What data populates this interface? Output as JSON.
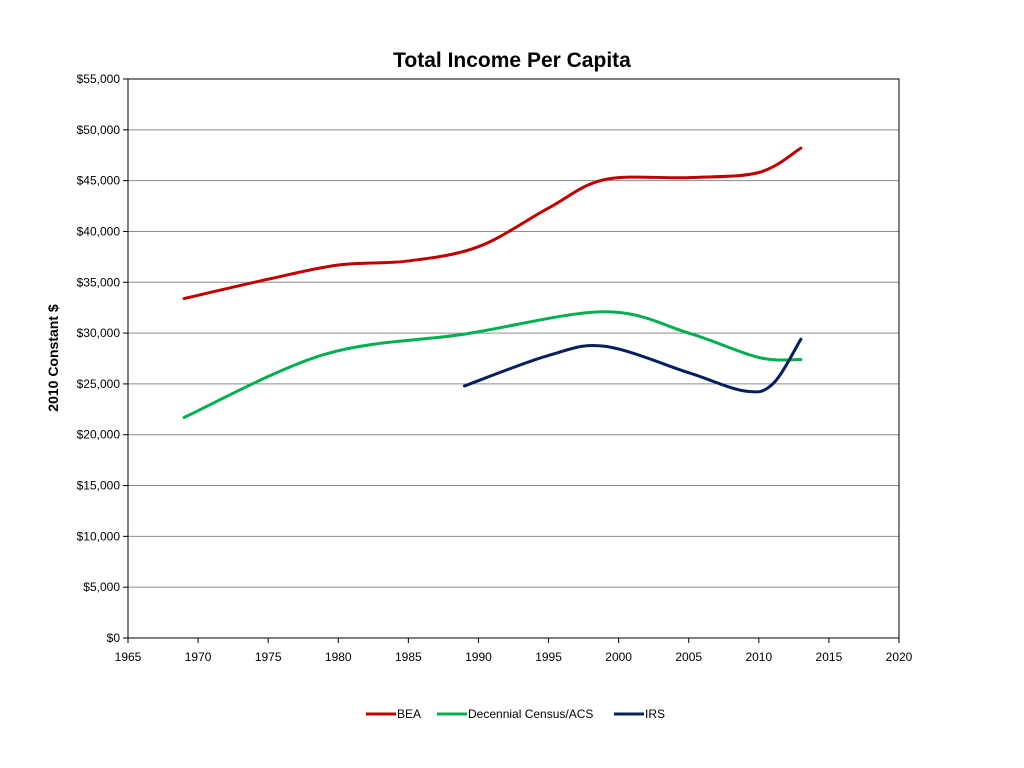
{
  "chart_data": {
    "type": "line",
    "title": "Total Income Per Capita",
    "xlabel": "",
    "ylabel": "2010 Constant $",
    "xlim": [
      1965,
      2020
    ],
    "ylim": [
      0,
      55000
    ],
    "x_ticks": [
      "1965",
      "1970",
      "1975",
      "1980",
      "1985",
      "1990",
      "1995",
      "2000",
      "2005",
      "2010",
      "2015",
      "2020"
    ],
    "x_tick_values": [
      1965,
      1970,
      1975,
      1980,
      1985,
      1990,
      1995,
      2000,
      2005,
      2010,
      2015,
      2020
    ],
    "y_ticks": [
      "$0",
      "$5,000",
      "$10,000",
      "$15,000",
      "$20,000",
      "$25,000",
      "$30,000",
      "$35,000",
      "$40,000",
      "$45,000",
      "$50,000",
      "$55,000"
    ],
    "y_tick_values": [
      0,
      5000,
      10000,
      15000,
      20000,
      25000,
      30000,
      35000,
      40000,
      45000,
      50000,
      55000
    ],
    "grid": true,
    "legend_position": "bottom",
    "series": [
      {
        "name": "BEA",
        "color": "#C00000",
        "x": [
          1969,
          1975,
          1980,
          1985,
          1990,
          1995,
          1999,
          2005,
          2010,
          2013
        ],
        "values": [
          33400,
          35300,
          36700,
          37100,
          38500,
          42300,
          45100,
          45300,
          45800,
          48200
        ]
      },
      {
        "name": "Decennial Census/ACS",
        "color": "#00B050",
        "x": [
          1969,
          1979,
          1989,
          1999,
          2005,
          2010,
          2013
        ],
        "values": [
          21700,
          27900,
          29900,
          32100,
          30000,
          27600,
          27400
        ]
      },
      {
        "name": "IRS",
        "color": "#002060",
        "x": [
          1989,
          1995,
          1999,
          2005,
          2009,
          2011,
          2013
        ],
        "values": [
          24800,
          27800,
          28700,
          26100,
          24300,
          25000,
          29400
        ]
      }
    ]
  }
}
